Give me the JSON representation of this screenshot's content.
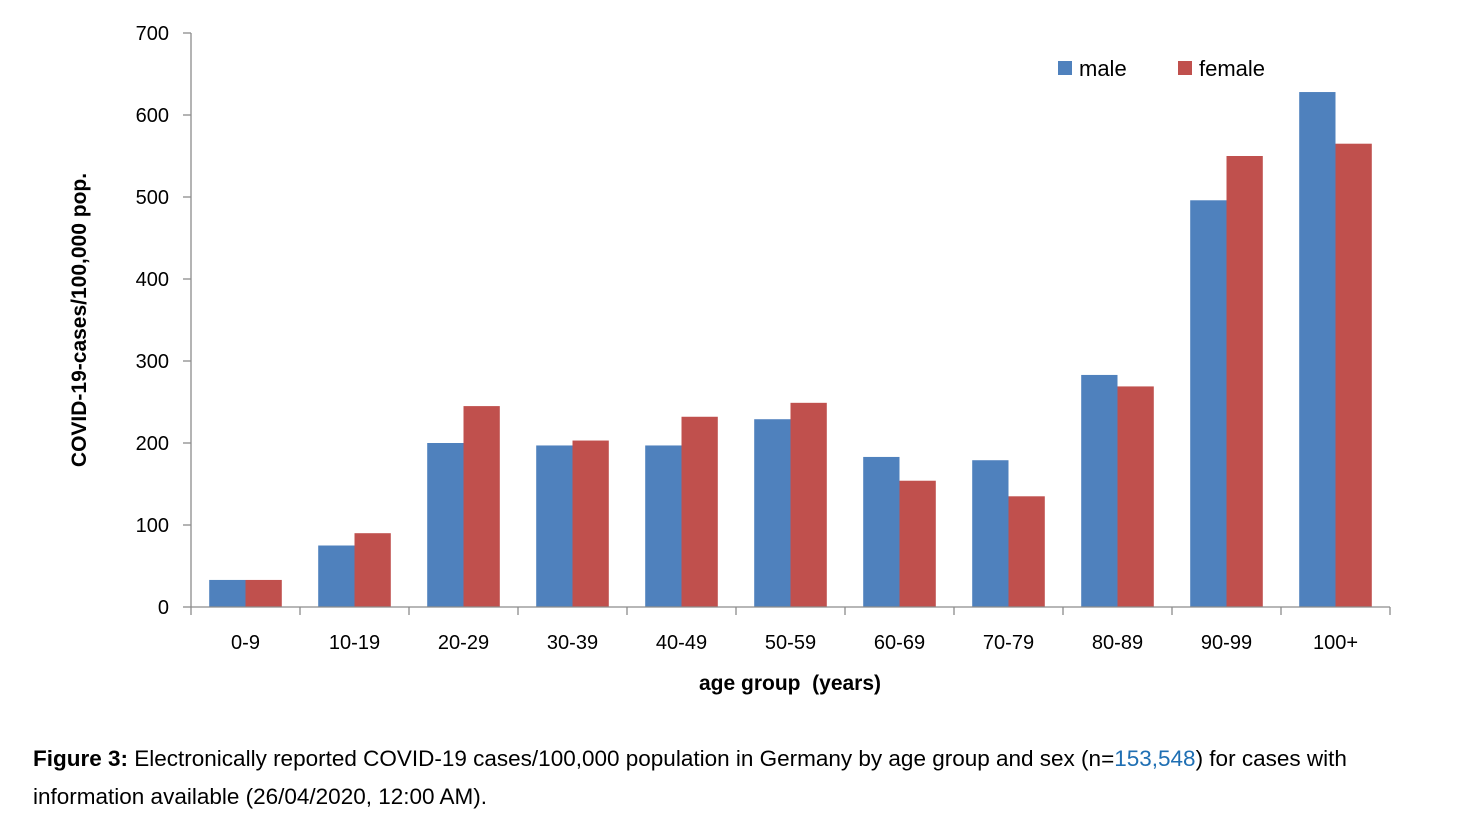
{
  "chart_data": {
    "type": "bar",
    "categories": [
      "0-9",
      "10-19",
      "20-29",
      "30-39",
      "40-49",
      "50-59",
      "60-69",
      "70-79",
      "80-89",
      "90-99",
      "100+"
    ],
    "series": [
      {
        "name": "male",
        "color": "#4f81bd",
        "values": [
          33,
          75,
          200,
          197,
          197,
          229,
          183,
          179,
          283,
          496,
          628
        ]
      },
      {
        "name": "female",
        "color": "#c0504d",
        "values": [
          33,
          90,
          245,
          203,
          232,
          249,
          154,
          135,
          269,
          550,
          565
        ]
      }
    ],
    "xlabel": "age group  (years)",
    "ylabel": "COVID-19-cases/100,000 pop.",
    "ylim": [
      0,
      700
    ],
    "yticks": [
      0,
      100,
      200,
      300,
      400,
      500,
      600,
      700
    ],
    "grid": false,
    "legend_position": "top-right"
  },
  "caption": {
    "label": "Figure 3:",
    "text_before": " Electronically reported COVID-19 cases/100,000 population in Germany by age group and sex (n=",
    "count": "153,548",
    "text_after": ") for cases with information available (26/04/2020, 12:00 AM)."
  }
}
